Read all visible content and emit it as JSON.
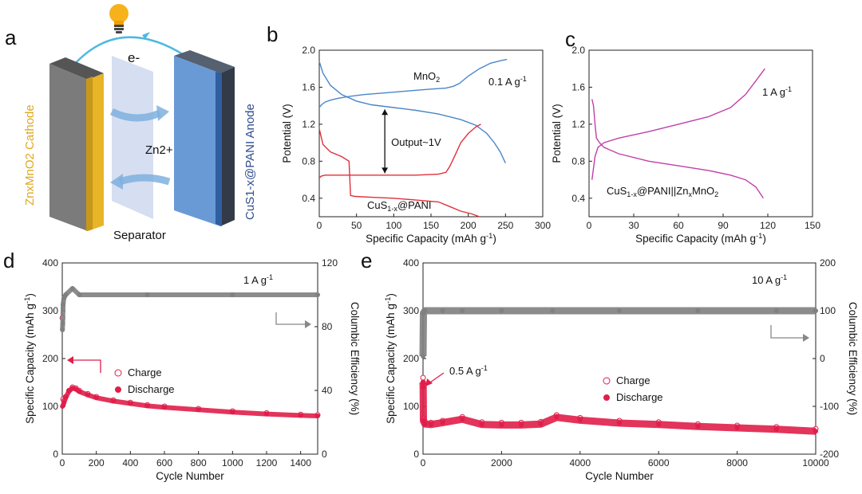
{
  "colors": {
    "blue": "#4a86c8",
    "red": "#e0303c",
    "magenta": "#c040a8",
    "gray": "#808080",
    "crimson": "#e01e4a",
    "cathode_gold": "#e8b428",
    "anode_blue": "#4f7fc0"
  },
  "panel_a": {
    "letter": "a",
    "cathode_label": "ZnxMnO2 Cathode",
    "anode_label": "CuS1-x@PANI Anode",
    "electron_label": "e-",
    "ion_label": "Zn2+",
    "separator_label": "Separator",
    "icons": [
      "lightbulb-icon",
      "arrow-icon"
    ]
  },
  "chart_data": [
    {
      "panel": "b",
      "type": "line",
      "xlabel": "Specific Capacity (mAh g-1)",
      "ylabel": "Potential (V)",
      "xlim": [
        0,
        300
      ],
      "ylim": [
        0.2,
        2.0
      ],
      "xticks": [
        0,
        50,
        100,
        150,
        200,
        250,
        300
      ],
      "yticks": [
        0.4,
        0.8,
        1.2,
        1.6,
        2.0
      ],
      "annotations": {
        "rate": "0.1 A g-1",
        "output": "Output~1V"
      },
      "series": [
        {
          "name": "MnO2",
          "color": "#4a86c8",
          "x": [
            0,
            3,
            8,
            15,
            25,
            40,
            60,
            90,
            120,
            150,
            170,
            180,
            188,
            200,
            215,
            230,
            245,
            252
          ],
          "y": [
            1.38,
            1.41,
            1.44,
            1.46,
            1.48,
            1.5,
            1.52,
            1.54,
            1.56,
            1.58,
            1.59,
            1.61,
            1.64,
            1.72,
            1.8,
            1.86,
            1.89,
            1.9
          ]
        },
        {
          "name": "",
          "color": "#4a86c8",
          "x": [
            0,
            5,
            15,
            30,
            50,
            70,
            100,
            130,
            160,
            190,
            210,
            225,
            235,
            243,
            250
          ],
          "y": [
            1.88,
            1.75,
            1.62,
            1.52,
            1.45,
            1.41,
            1.38,
            1.35,
            1.31,
            1.25,
            1.19,
            1.1,
            1.0,
            0.9,
            0.78
          ]
        },
        {
          "name": "CuS1-x@PANI",
          "color": "#e0303c",
          "x": [
            0,
            3,
            8,
            20,
            40,
            70,
            100,
            130,
            160,
            170,
            175,
            182,
            190,
            200,
            210,
            217
          ],
          "y": [
            0.62,
            0.64,
            0.65,
            0.65,
            0.65,
            0.65,
            0.65,
            0.65,
            0.66,
            0.68,
            0.74,
            0.86,
            1.0,
            1.1,
            1.17,
            1.2
          ]
        },
        {
          "name": "",
          "color": "#e0303c",
          "x": [
            0,
            5,
            15,
            30,
            40,
            42,
            48,
            70,
            100,
            130,
            160,
            175,
            190,
            205,
            215
          ],
          "y": [
            1.15,
            0.98,
            0.9,
            0.85,
            0.8,
            0.43,
            0.42,
            0.41,
            0.4,
            0.38,
            0.36,
            0.31,
            0.26,
            0.23,
            0.2
          ]
        }
      ]
    },
    {
      "panel": "c",
      "type": "line",
      "xlabel": "Specific Capacity (mAh g-1)",
      "ylabel": "Potential (V)",
      "xlim": [
        0,
        150
      ],
      "ylim": [
        0.2,
        2.0
      ],
      "xticks": [
        0,
        30,
        60,
        90,
        120,
        150
      ],
      "yticks": [
        0.4,
        0.8,
        1.2,
        1.6,
        2.0
      ],
      "annotations": {
        "rate": "1 A g-1"
      },
      "series": [
        {
          "name": "CuS1-x@PANI||ZnxMnO2",
          "color": "#c040a8",
          "x": [
            2,
            4,
            6,
            10,
            20,
            40,
            60,
            80,
            95,
            105,
            112,
            118
          ],
          "y": [
            0.6,
            0.85,
            0.95,
            1.0,
            1.05,
            1.12,
            1.2,
            1.28,
            1.38,
            1.52,
            1.67,
            1.8
          ]
        },
        {
          "name": "",
          "color": "#c040a8",
          "x": [
            2,
            3,
            4,
            5,
            7,
            10,
            20,
            40,
            60,
            80,
            95,
            105,
            112,
            117
          ],
          "y": [
            1.47,
            1.4,
            1.2,
            1.05,
            1.0,
            0.95,
            0.88,
            0.8,
            0.75,
            0.7,
            0.65,
            0.6,
            0.52,
            0.4
          ]
        }
      ]
    },
    {
      "panel": "d",
      "type": "scatter",
      "xlabel": "Cycle Number",
      "ylabel": "Specific Capacity (mAh g-1)",
      "y2label": "Columbic Efficiency (%)",
      "xlim": [
        0,
        1500
      ],
      "ylim": [
        0,
        400
      ],
      "y2lim": [
        0,
        120
      ],
      "xticks": [
        0,
        200,
        400,
        600,
        800,
        1000,
        1200,
        1400
      ],
      "yticks": [
        0,
        100,
        200,
        300,
        400
      ],
      "y2ticks": [
        0,
        40,
        80,
        120
      ],
      "annotations": {
        "rate": "1 A g-1"
      },
      "legend": [
        "Charge",
        "Discharge"
      ],
      "series": [
        {
          "name": "Charge",
          "color": "#e01e4a",
          "marker": "open-circle",
          "x": [
            1,
            5,
            10,
            20,
            40,
            60,
            80,
            100,
            150,
            200,
            300,
            400,
            500,
            600,
            800,
            1000,
            1200,
            1400,
            1500
          ],
          "y": [
            285,
            115,
            112,
            120,
            133,
            140,
            138,
            133,
            126,
            120,
            113,
            108,
            103,
            100,
            95,
            90,
            86,
            83,
            82
          ]
        },
        {
          "name": "Discharge",
          "color": "#e01e4a",
          "marker": "filled-circle",
          "x": [
            1,
            5,
            10,
            20,
            40,
            60,
            80,
            100,
            150,
            200,
            300,
            400,
            500,
            600,
            800,
            1000,
            1200,
            1400,
            1500
          ],
          "y": [
            100,
            102,
            108,
            118,
            132,
            138,
            136,
            131,
            124,
            118,
            111,
            106,
            101,
            98,
            93,
            88,
            84,
            81,
            80
          ]
        },
        {
          "name": "Columbic Efficiency",
          "color": "#808080",
          "axis": "y2",
          "x": [
            1,
            3,
            5,
            10,
            20,
            60,
            100,
            500,
            1000,
            1500
          ],
          "y": [
            78,
            82,
            94,
            98,
            100,
            104,
            100,
            100,
            100,
            100
          ]
        }
      ]
    },
    {
      "panel": "e",
      "type": "scatter",
      "xlabel": "Cycle Number",
      "ylabel": "Specific Capacity (mAh g-1)",
      "y2label": "Columbic Efficiency (%)",
      "xlim": [
        0,
        10000
      ],
      "ylim": [
        0,
        400
      ],
      "y2lim": [
        -200,
        200
      ],
      "xticks": [
        0,
        2000,
        4000,
        6000,
        8000,
        10000
      ],
      "yticks": [
        0,
        100,
        200,
        300,
        400
      ],
      "y2ticks": [
        -200,
        -100,
        0,
        100,
        200
      ],
      "annotations": {
        "rate": "10 A g-1",
        "initial_rate": "0.5 A g-1"
      },
      "legend": [
        "Charge",
        "Discharge"
      ],
      "series": [
        {
          "name": "Charge",
          "color": "#e01e4a",
          "marker": "open-circle",
          "x": [
            1,
            5,
            10,
            50,
            200,
            500,
            1000,
            1500,
            2000,
            2500,
            3000,
            3400,
            4000,
            5000,
            6000,
            7000,
            8000,
            9000,
            10000
          ],
          "y": [
            160,
            150,
            75,
            68,
            66,
            70,
            78,
            67,
            66,
            66,
            68,
            82,
            76,
            70,
            67,
            63,
            60,
            57,
            53
          ]
        },
        {
          "name": "Discharge",
          "color": "#e01e4a",
          "marker": "filled-circle",
          "x": [
            1,
            5,
            10,
            50,
            200,
            500,
            1000,
            1500,
            2000,
            2500,
            3000,
            3400,
            4000,
            5000,
            6000,
            7000,
            8000,
            9000,
            10000
          ],
          "y": [
            150,
            140,
            70,
            63,
            62,
            66,
            73,
            62,
            61,
            61,
            63,
            77,
            71,
            65,
            62,
            58,
            55,
            52,
            48
          ]
        },
        {
          "name": "Columbic Efficiency",
          "color": "#808080",
          "axis": "y2",
          "x": [
            1,
            10,
            50,
            500,
            1000,
            2000,
            3300,
            5000,
            7000,
            9000,
            10000
          ],
          "y": [
            5,
            95,
            100,
            100,
            100,
            100,
            100,
            100,
            100,
            100,
            100
          ]
        }
      ]
    }
  ]
}
